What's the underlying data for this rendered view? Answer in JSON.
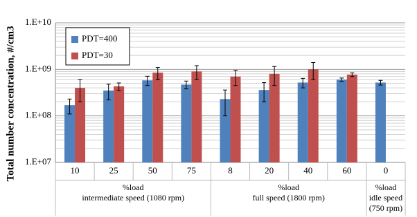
{
  "chart_data": {
    "type": "bar",
    "y_label": "Total number concentration, #/cm3",
    "groups": [
      {
        "label": [
          "%load",
          "intermediate speed (1080 rpm)"
        ],
        "categories": [
          "10",
          "25",
          "50",
          "75"
        ]
      },
      {
        "label": [
          "%load",
          "full speed (1800 rpm)"
        ],
        "categories": [
          "8",
          "20",
          "40",
          "60"
        ]
      },
      {
        "label": [
          "%load",
          "idle speed",
          "(750 rpm)"
        ],
        "categories": [
          "0"
        ]
      }
    ],
    "series": [
      {
        "name": "PDT=400",
        "color": "#4f81bd",
        "values": [
          170000000,
          350000000,
          580000000,
          470000000,
          230000000,
          360000000,
          520000000,
          600000000,
          520000000
        ],
        "errors": [
          60000000,
          130000000,
          130000000,
          90000000,
          130000000,
          160000000,
          120000000,
          50000000,
          60000000
        ]
      },
      {
        "name": "PDT=30",
        "color": "#c0504d",
        "values": [
          400000000,
          430000000,
          850000000,
          900000000,
          700000000,
          800000000,
          1000000000,
          770000000,
          null
        ],
        "errors": [
          200000000,
          80000000,
          250000000,
          300000000,
          250000000,
          350000000,
          400000000,
          70000000,
          null
        ]
      }
    ],
    "log_scale": true,
    "ylim": [
      10000000,
      10000000000
    ],
    "yticks": [
      {
        "value": 10000000,
        "label": "1.E+07"
      },
      {
        "value": 100000000,
        "label": "1.E+08"
      },
      {
        "value": 1000000000,
        "label": "1.E+09"
      },
      {
        "value": 10000000000,
        "label": "1.E+10"
      }
    ],
    "grid": true,
    "minor_grid": true,
    "legend": "upper-left"
  }
}
